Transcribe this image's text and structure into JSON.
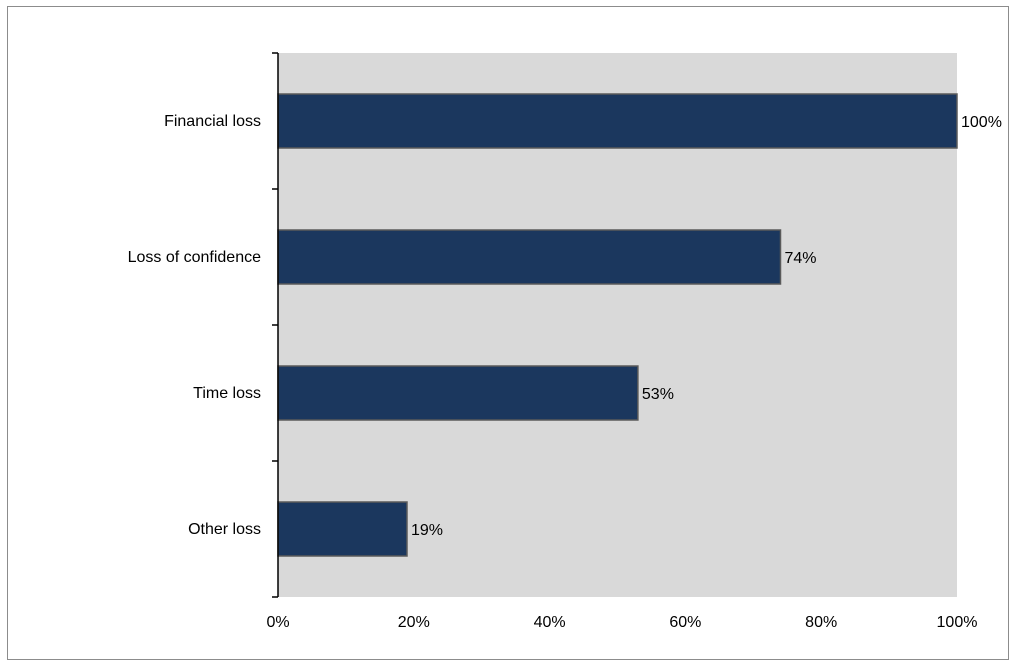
{
  "chart_data": {
    "type": "bar",
    "orientation": "horizontal",
    "categories": [
      "Financial loss",
      "Loss of confidence",
      "Time loss",
      "Other loss"
    ],
    "values": [
      100,
      74,
      53,
      19
    ],
    "data_labels": [
      "100%",
      "74%",
      "53%",
      "19%"
    ],
    "x_ticks": [
      "0%",
      "20%",
      "40%",
      "60%",
      "80%",
      "100%"
    ],
    "xlim": [
      0,
      100
    ],
    "title": "",
    "xlabel": "",
    "ylabel": "",
    "grid": false,
    "legend": "none"
  },
  "colors": {
    "bar_fill": "#1b375e",
    "bar_stroke": "#5a5a5a",
    "plot_background": "#d9d9d9",
    "axis": "#000000",
    "frame_border": "#8c8c8c"
  }
}
